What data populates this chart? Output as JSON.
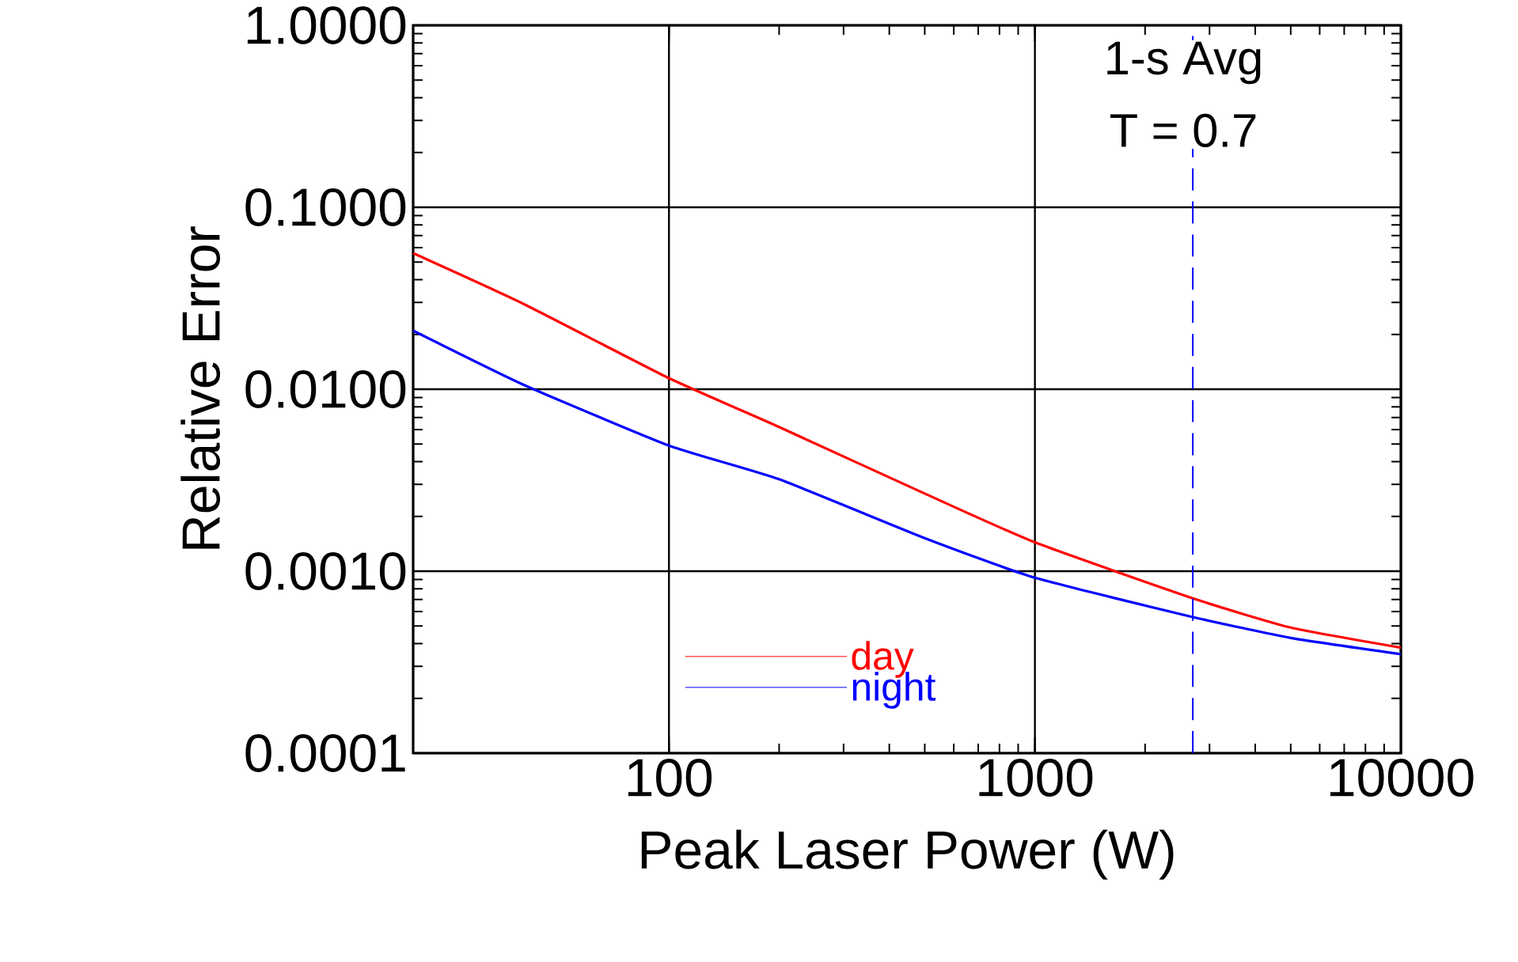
{
  "chart_data": {
    "type": "line",
    "xlabel": "Peak Laser Power (W)",
    "ylabel": "Relative Error",
    "x": [
      20,
      40,
      100,
      200,
      500,
      1000,
      2700,
      5000,
      10000
    ],
    "series": [
      {
        "name": "day",
        "color": "#ff0000",
        "values": [
          0.056,
          0.0295,
          0.0115,
          0.0062,
          0.00267,
          0.00144,
          0.00071,
          0.00049,
          0.00038
        ]
      },
      {
        "name": "night",
        "color": "#0000ff",
        "values": [
          0.021,
          0.0106,
          0.0049,
          0.0032,
          0.00152,
          0.00092,
          0.00056,
          0.00043,
          0.00035
        ]
      }
    ],
    "xlim": [
      20,
      10000
    ],
    "ylim": [
      0.0001,
      1
    ],
    "xticks": [
      100,
      1000,
      10000
    ],
    "yticks": [
      {
        "value": 0.0001,
        "label": "0.0001"
      },
      {
        "value": 0.001,
        "label": "0.0010"
      },
      {
        "value": 0.01,
        "label": "0.0100"
      },
      {
        "value": 0.1,
        "label": "0.1000"
      },
      {
        "value": 1,
        "label": "1.0000"
      }
    ],
    "log": "xy",
    "grid": true,
    "legend": "bottom",
    "line_style": "solid",
    "ref_lines": [
      {
        "axis": "x",
        "value": 2700,
        "color": "#0000ff",
        "line_style": "dashed"
      }
    ],
    "annotations": [
      "1-s Avg",
      "T = 0.7"
    ]
  }
}
